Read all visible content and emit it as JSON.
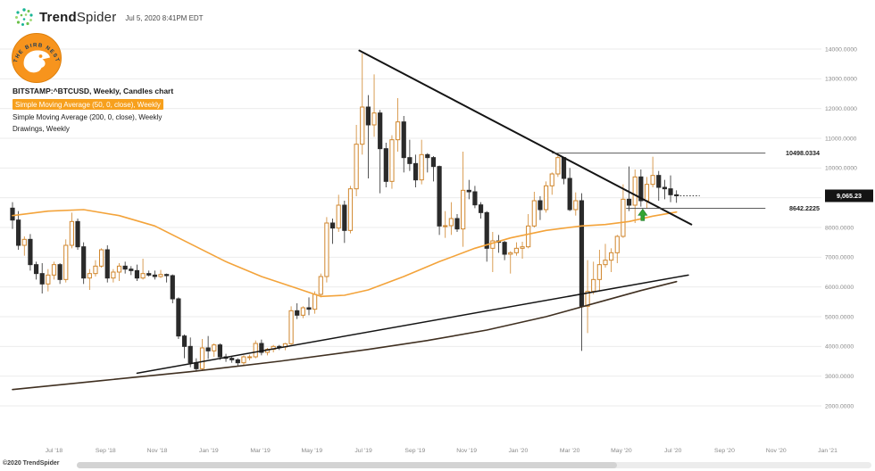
{
  "header": {
    "brand_trend": "Trend",
    "brand_spider": "Spider",
    "timestamp": "Jul 5, 2020 8:41PM EDT"
  },
  "logo_badge": {
    "text": "THE BIRB NEST"
  },
  "legend": {
    "symbol_line": "BITSTAMP:^BTCUSD, Weekly, Candles chart",
    "sma50_line": "Simple Moving Average (50, 0, close), Weekly",
    "sma200_line": "Simple Moving Average (200, 0, close), Weekly",
    "drawings_line": "Drawings, Weekly"
  },
  "footer": {
    "copyright": "©2020 TrendSpider"
  },
  "colors": {
    "up": "#d0862c",
    "down": "#2a2a2a",
    "sma50": "#f3a33a",
    "sma200": "#3f2f20",
    "trendline": "#141414",
    "level": "#444444",
    "grid": "#ebebeb",
    "axis_text": "#8a8a8a",
    "badge_bg": "#141414",
    "marker": "#33a532",
    "brand_orange": "#f7941d"
  },
  "chart_data": {
    "type": "candlestick",
    "symbol": "BITSTAMP:^BTCUSD",
    "timeframe": "Weekly",
    "title": "BITSTAMP:^BTCUSD, Weekly, Candles chart",
    "grid": "horizontal",
    "y_axis": {
      "min": 2000,
      "max": 14000,
      "step": 1000,
      "tick_labels": [
        "14000.0000",
        "13000.0000",
        "12000.0000",
        "11000.0000",
        "10000.0000",
        "9000.0000",
        "8000.0000",
        "7000.0000",
        "6000.0000",
        "5000.0000",
        "4000.0000",
        "3000.0000",
        "2000.0000"
      ]
    },
    "x_axis": {
      "first_tick_week": 7,
      "weeks_per_tick": 8.7,
      "tick_labels": [
        "Jul '18",
        "Sep '18",
        "Nov '18",
        "Jan '19",
        "Mar '19",
        "May '19",
        "Jul '19",
        "Sep '19",
        "Nov '19",
        "Jan '20",
        "Mar '20",
        "May '20",
        "Jul '20",
        "Sep '20",
        "Nov '20",
        "Jan '21"
      ]
    },
    "current_price": 9065.23,
    "current_price_label": "9,065.23",
    "levels": [
      {
        "label": "10498.0334",
        "price": 10498.0334,
        "from_week": 91,
        "to_week": 127
      },
      {
        "label": "8642.2225",
        "price": 8642.2225,
        "from_week": 103.5,
        "to_week": 127
      }
    ],
    "trendlines": [
      {
        "name": "descending-resistance-trendline",
        "from_week": 58.5,
        "from_price": 13950,
        "to_week": 114.5,
        "to_price": 8100,
        "width": 2
      },
      {
        "name": "ascending-support-trendline",
        "from_week": 21,
        "from_price": 3100,
        "to_week": 114,
        "to_price": 6400,
        "width": 1.5
      }
    ],
    "marker": {
      "name": "green-up-arrow",
      "week": 106.3,
      "price": 8620
    },
    "sma50_points": [
      [
        0,
        8400
      ],
      [
        6,
        8550
      ],
      [
        12,
        8600
      ],
      [
        18,
        8400
      ],
      [
        24,
        8050
      ],
      [
        30,
        7450
      ],
      [
        36,
        6850
      ],
      [
        42,
        6350
      ],
      [
        48,
        5950
      ],
      [
        52,
        5680
      ],
      [
        56,
        5720
      ],
      [
        60,
        5900
      ],
      [
        66,
        6350
      ],
      [
        72,
        6850
      ],
      [
        78,
        7300
      ],
      [
        84,
        7650
      ],
      [
        90,
        7900
      ],
      [
        96,
        8050
      ],
      [
        100,
        8100
      ],
      [
        104,
        8200
      ],
      [
        108,
        8380
      ],
      [
        112,
        8520
      ]
    ],
    "sma200_points": [
      [
        0,
        2550
      ],
      [
        15,
        2850
      ],
      [
        30,
        3150
      ],
      [
        45,
        3500
      ],
      [
        60,
        3900
      ],
      [
        70,
        4200
      ],
      [
        80,
        4550
      ],
      [
        90,
        5000
      ],
      [
        100,
        5550
      ],
      [
        106,
        5880
      ],
      [
        112,
        6180
      ]
    ],
    "candles": [
      [
        8650,
        8850,
        7950,
        8250
      ],
      [
        8250,
        8550,
        7250,
        7400
      ],
      [
        7400,
        7700,
        7050,
        7600
      ],
      [
        7600,
        7780,
        6550,
        6750
      ],
      [
        6750,
        6850,
        6250,
        6450
      ],
      [
        6450,
        6800,
        5780,
        6100
      ],
      [
        6100,
        6600,
        5850,
        6400
      ],
      [
        6400,
        6850,
        6250,
        6750
      ],
      [
        6750,
        6800,
        6100,
        6250
      ],
      [
        6250,
        7600,
        6150,
        7400
      ],
      [
        7400,
        8500,
        7300,
        8200
      ],
      [
        8200,
        8300,
        7250,
        7350
      ],
      [
        7350,
        7500,
        6100,
        6300
      ],
      [
        6300,
        6600,
        5900,
        6450
      ],
      [
        6450,
        6900,
        6350,
        6700
      ],
      [
        6700,
        7300,
        6650,
        7250
      ],
      [
        7250,
        7400,
        6150,
        6300
      ],
      [
        6300,
        6600,
        6150,
        6500
      ],
      [
        6500,
        6800,
        6200,
        6700
      ],
      [
        6700,
        6850,
        6450,
        6600
      ],
      [
        6600,
        6700,
        6400,
        6550
      ],
      [
        6550,
        6750,
        6200,
        6300
      ],
      [
        6300,
        6950,
        6250,
        6450
      ],
      [
        6450,
        6550,
        6350,
        6400
      ],
      [
        6400,
        6550,
        6250,
        6350
      ],
      [
        6350,
        6570,
        6300,
        6420
      ],
      [
        6420,
        6450,
        6150,
        6380
      ],
      [
        6380,
        6420,
        5450,
        5600
      ],
      [
        5600,
        5650,
        4250,
        4350
      ],
      [
        4350,
        4400,
        3600,
        4000
      ],
      [
        4000,
        4300,
        3300,
        3450
      ],
      [
        3450,
        3600,
        3150,
        3250
      ],
      [
        3250,
        4250,
        3200,
        3950
      ],
      [
        3950,
        4350,
        3580,
        3850
      ],
      [
        3850,
        4100,
        3650,
        4050
      ],
      [
        4050,
        4100,
        3550,
        3650
      ],
      [
        3650,
        3750,
        3480,
        3600
      ],
      [
        3600,
        3650,
        3450,
        3550
      ],
      [
        3550,
        3600,
        3350,
        3450
      ],
      [
        3450,
        3700,
        3350,
        3650
      ],
      [
        3650,
        3720,
        3530,
        3650
      ],
      [
        3650,
        4200,
        3600,
        4100
      ],
      [
        4100,
        4230,
        3700,
        3800
      ],
      [
        3800,
        3950,
        3700,
        3900
      ],
      [
        3900,
        4050,
        3800,
        4000
      ],
      [
        4000,
        4050,
        3880,
        3980
      ],
      [
        3980,
        4120,
        3870,
        4090
      ],
      [
        4090,
        5350,
        4050,
        5200
      ],
      [
        5200,
        5450,
        4920,
        5050
      ],
      [
        5050,
        5350,
        4950,
        5300
      ],
      [
        5300,
        5650,
        5050,
        5250
      ],
      [
        5250,
        5850,
        5100,
        5750
      ],
      [
        5750,
        6450,
        5650,
        6350
      ],
      [
        6350,
        8350,
        6150,
        8150
      ],
      [
        8150,
        8300,
        7450,
        7980
      ],
      [
        7980,
        9100,
        7850,
        8750
      ],
      [
        8750,
        8900,
        7480,
        7900
      ],
      [
        7900,
        9400,
        7800,
        9300
      ],
      [
        9300,
        11450,
        9050,
        10800
      ],
      [
        10800,
        13850,
        10450,
        12050
      ],
      [
        12050,
        12450,
        9650,
        11450
      ],
      [
        11450,
        13150,
        11050,
        11850
      ],
      [
        11850,
        11950,
        9150,
        10650
      ],
      [
        10650,
        10850,
        9350,
        9550
      ],
      [
        9550,
        11100,
        9300,
        10950
      ],
      [
        10950,
        12350,
        10550,
        11550
      ],
      [
        11550,
        11750,
        9850,
        10350
      ],
      [
        10350,
        10950,
        9900,
        10150
      ],
      [
        10150,
        10450,
        9350,
        9600
      ],
      [
        9600,
        10950,
        9450,
        10450
      ],
      [
        10450,
        10500,
        9850,
        10350
      ],
      [
        10350,
        10400,
        9550,
        10050
      ],
      [
        10050,
        10080,
        7750,
        8050
      ],
      [
        8050,
        8550,
        7650,
        8060
      ],
      [
        8060,
        8850,
        7750,
        8300
      ],
      [
        8300,
        8450,
        7850,
        7950
      ],
      [
        7950,
        10550,
        7350,
        9250
      ],
      [
        9250,
        9600,
        8950,
        9200
      ],
      [
        9200,
        9400,
        8650,
        8760
      ],
      [
        8760,
        8850,
        8300,
        8500
      ],
      [
        8500,
        8550,
        6850,
        7300
      ],
      [
        7300,
        7850,
        6500,
        7550
      ],
      [
        7550,
        7750,
        7150,
        7500
      ],
      [
        7500,
        7550,
        6900,
        7100
      ],
      [
        7100,
        7200,
        6450,
        7150
      ],
      [
        7150,
        7500,
        7050,
        7300
      ],
      [
        7300,
        7520,
        6950,
        7350
      ],
      [
        7350,
        8450,
        7300,
        8050
      ],
      [
        8050,
        9200,
        8000,
        8900
      ],
      [
        8900,
        9050,
        8250,
        8600
      ],
      [
        8600,
        9550,
        8500,
        9400
      ],
      [
        9400,
        9850,
        9100,
        9800
      ],
      [
        9800,
        10500,
        9700,
        10350
      ],
      [
        10350,
        10370,
        9450,
        9650
      ],
      [
        9650,
        10000,
        8550,
        8600
      ],
      [
        8600,
        9180,
        8400,
        8900
      ],
      [
        8900,
        9150,
        3850,
        5350
      ],
      [
        5350,
        6900,
        4450,
        5850
      ],
      [
        5850,
        6850,
        5750,
        6250
      ],
      [
        6250,
        7250,
        5870,
        6750
      ],
      [
        6750,
        7450,
        6650,
        6900
      ],
      [
        6900,
        7300,
        6500,
        7150
      ],
      [
        7150,
        7750,
        6800,
        7700
      ],
      [
        7700,
        9450,
        7650,
        8950
      ],
      [
        8950,
        10050,
        8550,
        8750
      ],
      [
        8750,
        9950,
        8150,
        9700
      ],
      [
        9700,
        9950,
        8700,
        8900
      ],
      [
        8900,
        9700,
        8650,
        9450
      ],
      [
        9450,
        10380,
        9350,
        9750
      ],
      [
        9750,
        9900,
        8900,
        9350
      ],
      [
        9350,
        9600,
        8950,
        9300
      ],
      [
        9300,
        9750,
        8850,
        9100
      ],
      [
        9100,
        9250,
        8830,
        9065.23
      ]
    ]
  }
}
